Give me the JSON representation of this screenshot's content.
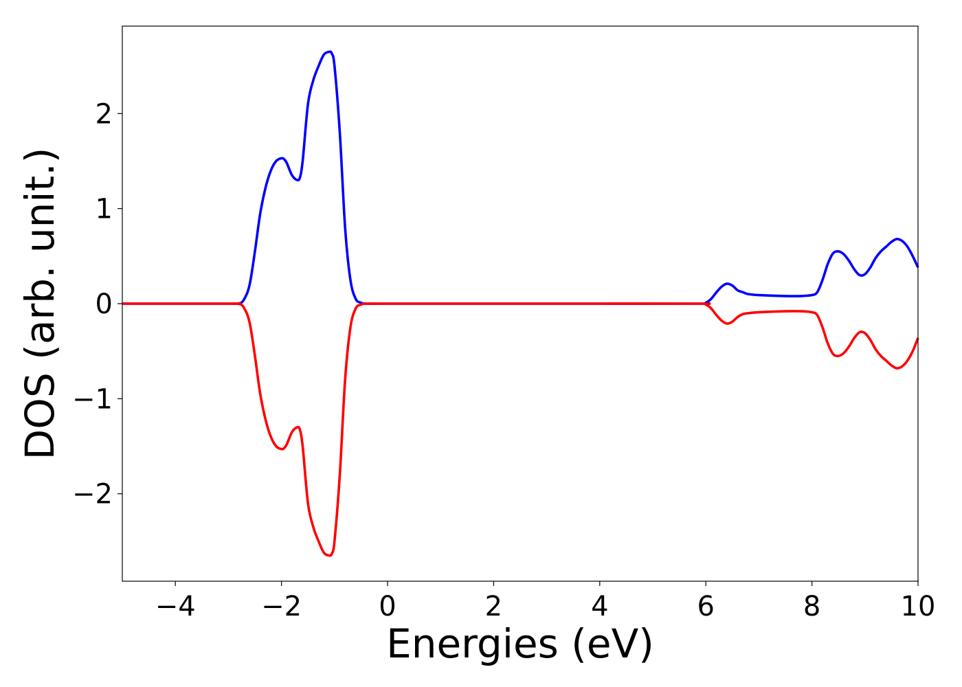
{
  "chart_data": {
    "type": "line",
    "title": "",
    "xlabel": "Energies (eV)",
    "ylabel": "DOS (arb. unit.)",
    "xlim": [
      -5,
      10
    ],
    "ylim": [
      -2.92,
      2.92
    ],
    "xticks": [
      -4,
      -2,
      0,
      2,
      4,
      6,
      8,
      10
    ],
    "xtick_labels": [
      "−4",
      "−2",
      "0",
      "2",
      "4",
      "6",
      "8",
      "10"
    ],
    "yticks": [
      -2,
      -1,
      0,
      1,
      2
    ],
    "ytick_labels": [
      "−2",
      "−1",
      "0",
      "1",
      "2"
    ],
    "grid": false,
    "legend": "none",
    "series": [
      {
        "color": "#0000ff",
        "x": [
          -5.0,
          -3.0,
          -2.8,
          -2.7,
          -2.6,
          -2.5,
          -2.4,
          -2.3,
          -2.2,
          -2.1,
          -2.0,
          -1.95,
          -1.9,
          -1.8,
          -1.7,
          -1.65,
          -1.6,
          -1.5,
          -1.4,
          -1.3,
          -1.2,
          -1.1,
          -1.05,
          -1.0,
          -0.9,
          -0.8,
          -0.7,
          -0.6,
          -0.5,
          -0.4,
          0.0,
          2.0,
          4.0,
          5.9,
          6.0,
          6.1,
          6.2,
          6.3,
          6.4,
          6.5,
          6.6,
          6.7,
          6.8,
          7.0,
          7.5,
          7.8,
          8.0,
          8.1,
          8.2,
          8.3,
          8.4,
          8.5,
          8.6,
          8.7,
          8.8,
          8.9,
          9.0,
          9.1,
          9.2,
          9.3,
          9.4,
          9.5,
          9.6,
          9.7,
          9.8,
          9.9,
          10.0
        ],
        "values": [
          0.0,
          0.0,
          0.0,
          0.05,
          0.2,
          0.55,
          0.95,
          1.22,
          1.4,
          1.5,
          1.53,
          1.52,
          1.48,
          1.35,
          1.3,
          1.33,
          1.5,
          2.1,
          2.35,
          2.5,
          2.62,
          2.65,
          2.63,
          2.5,
          1.8,
          0.8,
          0.25,
          0.05,
          0.01,
          0.0,
          0.0,
          0.0,
          0.0,
          0.0,
          0.01,
          0.05,
          0.12,
          0.18,
          0.21,
          0.19,
          0.14,
          0.12,
          0.1,
          0.09,
          0.08,
          0.08,
          0.09,
          0.12,
          0.25,
          0.42,
          0.53,
          0.55,
          0.52,
          0.45,
          0.36,
          0.3,
          0.31,
          0.38,
          0.48,
          0.55,
          0.6,
          0.65,
          0.68,
          0.66,
          0.6,
          0.5,
          0.38
        ]
      },
      {
        "color": "#ff0000",
        "x": [
          -5.0,
          -3.0,
          -2.8,
          -2.7,
          -2.6,
          -2.5,
          -2.4,
          -2.3,
          -2.2,
          -2.1,
          -2.0,
          -1.95,
          -1.9,
          -1.8,
          -1.7,
          -1.65,
          -1.6,
          -1.5,
          -1.4,
          -1.3,
          -1.2,
          -1.1,
          -1.05,
          -1.0,
          -0.9,
          -0.8,
          -0.7,
          -0.6,
          -0.5,
          -0.4,
          0.0,
          2.0,
          4.0,
          5.9,
          6.0,
          6.1,
          6.2,
          6.3,
          6.4,
          6.5,
          6.6,
          6.7,
          6.8,
          7.0,
          7.5,
          7.8,
          8.0,
          8.1,
          8.2,
          8.3,
          8.4,
          8.5,
          8.6,
          8.7,
          8.8,
          8.9,
          9.0,
          9.1,
          9.2,
          9.3,
          9.4,
          9.5,
          9.6,
          9.7,
          9.8,
          9.9,
          10.0
        ],
        "values": [
          0.0,
          0.0,
          0.0,
          -0.05,
          -0.2,
          -0.55,
          -0.95,
          -1.22,
          -1.4,
          -1.5,
          -1.53,
          -1.52,
          -1.48,
          -1.35,
          -1.3,
          -1.33,
          -1.5,
          -2.1,
          -2.35,
          -2.5,
          -2.62,
          -2.65,
          -2.63,
          -2.5,
          -1.8,
          -0.8,
          -0.25,
          -0.05,
          -0.01,
          0.0,
          0.0,
          0.0,
          0.0,
          0.0,
          -0.01,
          -0.05,
          -0.12,
          -0.18,
          -0.21,
          -0.19,
          -0.14,
          -0.11,
          -0.1,
          -0.09,
          -0.08,
          -0.08,
          -0.09,
          -0.12,
          -0.25,
          -0.42,
          -0.53,
          -0.55,
          -0.52,
          -0.45,
          -0.36,
          -0.3,
          -0.31,
          -0.38,
          -0.48,
          -0.55,
          -0.6,
          -0.65,
          -0.68,
          -0.66,
          -0.6,
          -0.5,
          -0.36
        ]
      }
    ]
  }
}
